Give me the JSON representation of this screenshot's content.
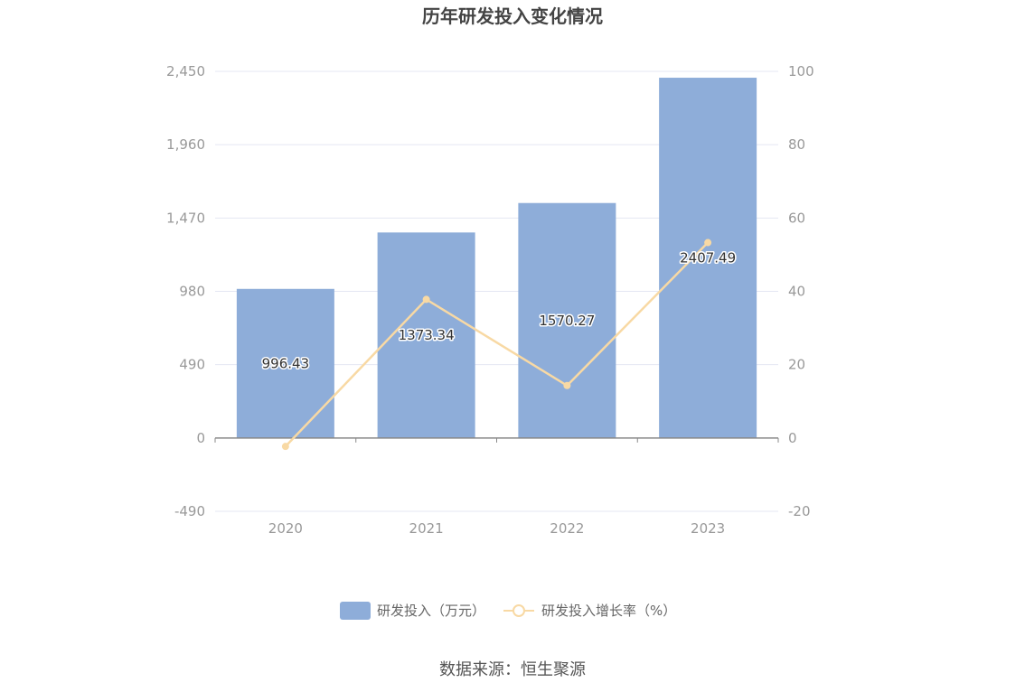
{
  "source_text": "数据来源：恒生聚源",
  "chart_data": {
    "type": "bar",
    "title": "历年研发投入变化情况",
    "categories": [
      "2020",
      "2021",
      "2022",
      "2023"
    ],
    "series": [
      {
        "name": "研发投入（万元）",
        "type": "bar",
        "axis": "left",
        "values": [
          996.43,
          1373.34,
          1570.27,
          2407.49
        ],
        "labels": [
          "996.43",
          "1373.34",
          "1570.27",
          "2407.49"
        ],
        "color": "#8EADD9"
      },
      {
        "name": "研发投入增长率（%）",
        "type": "line",
        "axis": "right",
        "values": [
          -2.3,
          37.8,
          14.3,
          53.3
        ],
        "color": "#F8D9A4"
      }
    ],
    "y_left": {
      "min": -490,
      "max": 2450,
      "ticks": [
        "2,450",
        "1,960",
        "1,470",
        "980",
        "490",
        "0",
        "-490"
      ],
      "tick_values": [
        2450,
        1960,
        1470,
        980,
        490,
        0,
        -490
      ]
    },
    "y_right": {
      "min": -20,
      "max": 100,
      "ticks": [
        "100",
        "80",
        "60",
        "40",
        "20",
        "0",
        "-20"
      ],
      "tick_values": [
        100,
        80,
        60,
        40,
        20,
        0,
        -20
      ]
    },
    "grid": true,
    "legend_position": "bottom"
  }
}
